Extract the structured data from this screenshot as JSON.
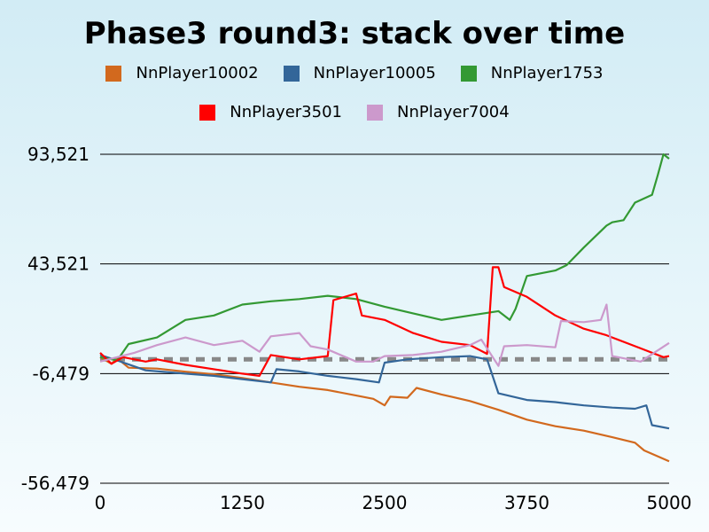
{
  "chart_data": {
    "type": "line",
    "title": "Phase3 round3: stack over time",
    "xlabel": "",
    "ylabel": "",
    "xlim": [
      0,
      5000
    ],
    "ylim": [
      -56479,
      93521
    ],
    "x_ticks": [
      0,
      1250,
      2500,
      3750,
      5000
    ],
    "x_tick_labels": [
      "0",
      "1250",
      "2500",
      "3750",
      "5000"
    ],
    "y_ticks": [
      -56479,
      -6479,
      43521,
      93521
    ],
    "y_tick_labels": [
      "-56,479",
      "-6,479",
      "43,521",
      "93,521"
    ],
    "grid": "horizontal",
    "legend_position": "top",
    "baseline": 0,
    "series": [
      {
        "name": "NnPlayer10002",
        "color": "#d2691e",
        "points": [
          [
            0,
            1000
          ],
          [
            100,
            -2000
          ],
          [
            150,
            500
          ],
          [
            250,
            -3800
          ],
          [
            500,
            -4200
          ],
          [
            750,
            -5600
          ],
          [
            1000,
            -6800
          ],
          [
            1250,
            -8500
          ],
          [
            1500,
            -10500
          ],
          [
            1750,
            -12500
          ],
          [
            2000,
            -14000
          ],
          [
            2250,
            -16500
          ],
          [
            2400,
            -18000
          ],
          [
            2500,
            -21000
          ],
          [
            2550,
            -17000
          ],
          [
            2700,
            -17500
          ],
          [
            2780,
            -13000
          ],
          [
            3000,
            -16000
          ],
          [
            3250,
            -19000
          ],
          [
            3500,
            -23000
          ],
          [
            3750,
            -27500
          ],
          [
            4000,
            -30500
          ],
          [
            4250,
            -32500
          ],
          [
            4500,
            -35500
          ],
          [
            4700,
            -38000
          ],
          [
            4780,
            -41500
          ],
          [
            5000,
            -46500
          ]
        ]
      },
      {
        "name": "NnPlayer10005",
        "color": "#336699",
        "points": [
          [
            0,
            2000
          ],
          [
            150,
            -500
          ],
          [
            400,
            -5000
          ],
          [
            750,
            -6500
          ],
          [
            1000,
            -7500
          ],
          [
            1250,
            -9000
          ],
          [
            1500,
            -10500
          ],
          [
            1550,
            -4500
          ],
          [
            1750,
            -5500
          ],
          [
            2000,
            -7500
          ],
          [
            2250,
            -9000
          ],
          [
            2450,
            -10500
          ],
          [
            2500,
            -1500
          ],
          [
            2700,
            0
          ],
          [
            3000,
            1000
          ],
          [
            3250,
            1500
          ],
          [
            3400,
            0
          ],
          [
            3500,
            -15500
          ],
          [
            3750,
            -18500
          ],
          [
            4000,
            -19500
          ],
          [
            4250,
            -21000
          ],
          [
            4500,
            -22000
          ],
          [
            4700,
            -22500
          ],
          [
            4800,
            -21000
          ],
          [
            4850,
            -30000
          ],
          [
            5000,
            -31500
          ]
        ]
      },
      {
        "name": "NnPlayer1753",
        "color": "#339933",
        "points": [
          [
            0,
            1000
          ],
          [
            150,
            -500
          ],
          [
            250,
            7000
          ],
          [
            500,
            10000
          ],
          [
            750,
            18000
          ],
          [
            1000,
            20000
          ],
          [
            1250,
            25000
          ],
          [
            1500,
            26500
          ],
          [
            1750,
            27500
          ],
          [
            2000,
            29000
          ],
          [
            2250,
            27500
          ],
          [
            2500,
            24000
          ],
          [
            2750,
            21000
          ],
          [
            3000,
            18000
          ],
          [
            3250,
            20000
          ],
          [
            3500,
            22000
          ],
          [
            3600,
            18000
          ],
          [
            3650,
            23000
          ],
          [
            3750,
            38000
          ],
          [
            4000,
            40500
          ],
          [
            4100,
            43000
          ],
          [
            4250,
            51000
          ],
          [
            4450,
            61000
          ],
          [
            4500,
            62500
          ],
          [
            4600,
            63500
          ],
          [
            4700,
            71500
          ],
          [
            4850,
            75000
          ],
          [
            4900,
            84000
          ],
          [
            4950,
            93521
          ],
          [
            5000,
            91500
          ]
        ]
      },
      {
        "name": "NnPlayer3501",
        "color": "#ff0000",
        "points": [
          [
            0,
            3000
          ],
          [
            100,
            -2000
          ],
          [
            200,
            1000
          ],
          [
            400,
            -1000
          ],
          [
            500,
            0
          ],
          [
            750,
            -2500
          ],
          [
            1000,
            -4500
          ],
          [
            1250,
            -6500
          ],
          [
            1400,
            -7500
          ],
          [
            1500,
            2000
          ],
          [
            1750,
            0
          ],
          [
            2000,
            1500
          ],
          [
            2050,
            27000
          ],
          [
            2250,
            30000
          ],
          [
            2300,
            20000
          ],
          [
            2500,
            18000
          ],
          [
            2750,
            12000
          ],
          [
            3000,
            8000
          ],
          [
            3250,
            6500
          ],
          [
            3400,
            2500
          ],
          [
            3450,
            42000
          ],
          [
            3500,
            42000
          ],
          [
            3550,
            33000
          ],
          [
            3750,
            28500
          ],
          [
            4000,
            20000
          ],
          [
            4250,
            14000
          ],
          [
            4450,
            11000
          ],
          [
            4500,
            10000
          ],
          [
            4750,
            5000
          ],
          [
            4950,
            1000
          ],
          [
            5000,
            1500
          ]
        ]
      },
      {
        "name": "NnPlayer7004",
        "color": "#cc99cc",
        "points": [
          [
            0,
            -1000
          ],
          [
            150,
            1000
          ],
          [
            300,
            3000
          ],
          [
            500,
            6500
          ],
          [
            750,
            10000
          ],
          [
            1000,
            6500
          ],
          [
            1250,
            8500
          ],
          [
            1400,
            3500
          ],
          [
            1500,
            10500
          ],
          [
            1750,
            12000
          ],
          [
            1850,
            6000
          ],
          [
            2000,
            4500
          ],
          [
            2250,
            -1000
          ],
          [
            2400,
            -1000
          ],
          [
            2500,
            1500
          ],
          [
            2750,
            2000
          ],
          [
            3000,
            3500
          ],
          [
            3250,
            6500
          ],
          [
            3350,
            9000
          ],
          [
            3500,
            -3000
          ],
          [
            3550,
            6000
          ],
          [
            3750,
            6500
          ],
          [
            4000,
            5500
          ],
          [
            4050,
            17500
          ],
          [
            4250,
            17000
          ],
          [
            4400,
            18000
          ],
          [
            4450,
            25000
          ],
          [
            4500,
            1500
          ],
          [
            4750,
            -1000
          ],
          [
            5000,
            7500
          ]
        ]
      }
    ]
  }
}
